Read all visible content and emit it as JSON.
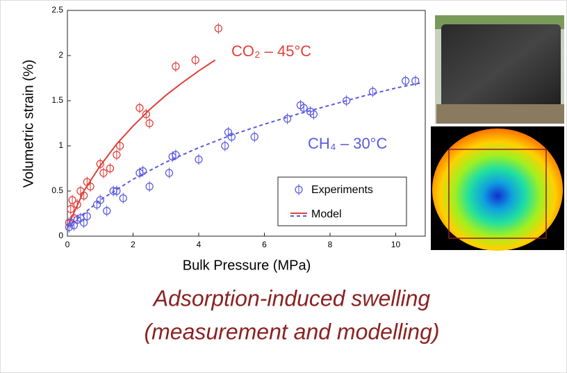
{
  "chart_data": {
    "type": "scatter",
    "x_label": "Bulk Pressure (MPa)",
    "y_label": "Volumetric strain (%)",
    "xlim": [
      0,
      10.9
    ],
    "xticks": [
      0,
      2,
      4,
      6,
      8,
      10
    ],
    "ylim": [
      0,
      2.5
    ],
    "yticks": [
      0,
      0.5,
      1,
      1.5,
      2,
      2.5
    ],
    "legend": {
      "items": [
        "Experiments",
        "Model"
      ],
      "position": "lower right"
    },
    "series": [
      {
        "label": "CO₂ – 45°C",
        "color": "#e0403a",
        "dashed_model": false,
        "yerr": 0.06,
        "x": [
          0.05,
          0.1,
          0.15,
          0.2,
          0.3,
          0.4,
          0.5,
          0.6,
          0.7,
          1.0,
          1.1,
          1.3,
          1.5,
          1.6,
          2.2,
          2.4,
          2.5,
          3.3,
          3.9,
          4.6
        ],
        "y": [
          0.15,
          0.3,
          0.4,
          0.2,
          0.35,
          0.5,
          0.45,
          0.6,
          0.55,
          0.8,
          0.7,
          0.75,
          0.9,
          1.0,
          1.42,
          1.35,
          1.25,
          1.88,
          1.95,
          2.3
        ],
        "model_x": [
          0,
          0.5,
          1,
          1.5,
          2,
          2.5,
          3,
          3.5,
          4,
          4.5
        ],
        "model_y": [
          0.1,
          0.5,
          0.78,
          1.02,
          1.22,
          1.4,
          1.56,
          1.7,
          1.83,
          1.95
        ]
      },
      {
        "label": "CH₄ – 30°C",
        "color": "#5a5ae0",
        "dashed_model": true,
        "yerr": 0.06,
        "x": [
          0.05,
          0.1,
          0.2,
          0.3,
          0.4,
          0.5,
          0.6,
          0.9,
          1.0,
          1.2,
          1.4,
          1.5,
          1.7,
          2.2,
          2.3,
          2.5,
          3.1,
          3.2,
          3.3,
          4.0,
          4.8,
          4.9,
          5.0,
          5.7,
          6.7,
          7.1,
          7.2,
          7.4,
          7.5,
          8.5,
          9.3,
          10.3,
          10.6
        ],
        "y": [
          0.1,
          0.15,
          0.12,
          0.18,
          0.2,
          0.15,
          0.22,
          0.35,
          0.4,
          0.28,
          0.5,
          0.5,
          0.42,
          0.7,
          0.72,
          0.55,
          0.7,
          0.88,
          0.9,
          0.85,
          1.0,
          1.15,
          1.1,
          1.1,
          1.3,
          1.45,
          1.42,
          1.38,
          1.35,
          1.5,
          1.6,
          1.72,
          1.72
        ],
        "model_x": [
          0,
          1,
          2,
          3,
          4,
          5,
          6,
          7,
          8,
          9,
          10,
          10.8
        ],
        "model_y": [
          0.1,
          0.4,
          0.63,
          0.82,
          0.98,
          1.12,
          1.24,
          1.35,
          1.45,
          1.55,
          1.64,
          1.7
        ]
      }
    ],
    "caption": [
      "Adsorption-induced swelling",
      "(measurement and modelling)"
    ]
  }
}
